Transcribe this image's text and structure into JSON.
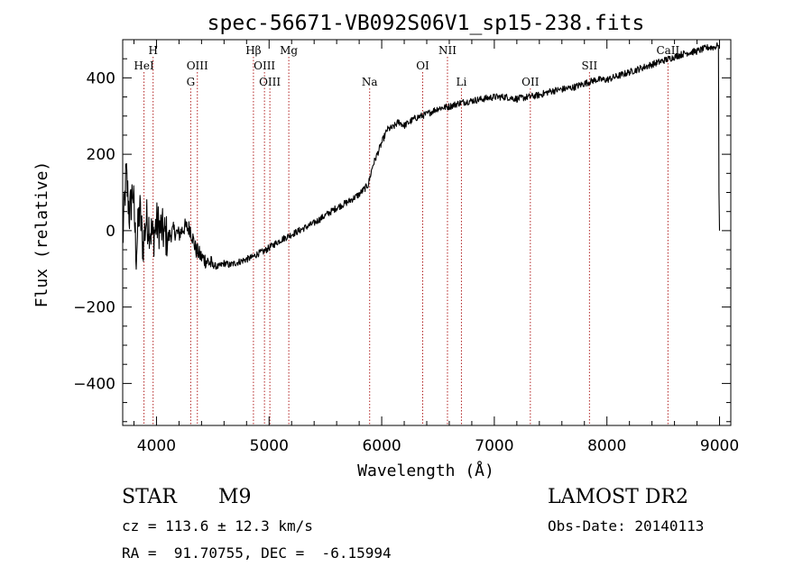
{
  "chart_data": {
    "type": "line",
    "title": "spec-56671-VB092S06V1_sp15-238.fits",
    "xlabel": "Wavelength (Å)",
    "ylabel": "Flux (relative)",
    "xlim": [
      3700,
      9100
    ],
    "ylim": [
      -510,
      500
    ],
    "x_ticks": [
      4000,
      5000,
      6000,
      7000,
      8000,
      9000
    ],
    "y_ticks": [
      -400,
      -200,
      0,
      200,
      400
    ],
    "x_tick_labels": [
      "4000",
      "5000",
      "6000",
      "7000",
      "8000",
      "9000"
    ],
    "y_tick_labels": [
      "−400",
      "−200",
      "0",
      "200",
      "400"
    ],
    "grid": false,
    "series": [
      {
        "color": "#000000",
        "points": [
          [
            3700,
            -30
          ],
          [
            3730,
            150
          ],
          [
            3760,
            40
          ],
          [
            3790,
            110
          ],
          [
            3820,
            -60
          ],
          [
            3850,
            60
          ],
          [
            3880,
            -40
          ],
          [
            3910,
            30
          ],
          [
            3940,
            10
          ],
          [
            3970,
            -20
          ],
          [
            4000,
            20
          ],
          [
            4050,
            0
          ],
          [
            4100,
            -20
          ],
          [
            4150,
            0
          ],
          [
            4200,
            -10
          ],
          [
            4250,
            10
          ],
          [
            4300,
            5
          ],
          [
            4350,
            -50
          ],
          [
            4400,
            -70
          ],
          [
            4450,
            -80
          ],
          [
            4500,
            -90
          ],
          [
            4550,
            -95
          ],
          [
            4600,
            -85
          ],
          [
            4650,
            -90
          ],
          [
            4700,
            -85
          ],
          [
            4750,
            -80
          ],
          [
            4800,
            -75
          ],
          [
            4850,
            -70
          ],
          [
            4900,
            -60
          ],
          [
            4950,
            -55
          ],
          [
            5000,
            -45
          ],
          [
            5100,
            -25
          ],
          [
            5200,
            -10
          ],
          [
            5300,
            5
          ],
          [
            5400,
            20
          ],
          [
            5500,
            40
          ],
          [
            5600,
            60
          ],
          [
            5700,
            75
          ],
          [
            5800,
            95
          ],
          [
            5880,
            120
          ],
          [
            5920,
            170
          ],
          [
            5960,
            200
          ],
          [
            6000,
            230
          ],
          [
            6050,
            265
          ],
          [
            6100,
            270
          ],
          [
            6150,
            285
          ],
          [
            6200,
            275
          ],
          [
            6300,
            295
          ],
          [
            6400,
            305
          ],
          [
            6500,
            320
          ],
          [
            6600,
            325
          ],
          [
            6700,
            335
          ],
          [
            6800,
            340
          ],
          [
            6900,
            345
          ],
          [
            7000,
            350
          ],
          [
            7100,
            350
          ],
          [
            7200,
            345
          ],
          [
            7300,
            350
          ],
          [
            7400,
            355
          ],
          [
            7500,
            365
          ],
          [
            7600,
            370
          ],
          [
            7700,
            375
          ],
          [
            7800,
            385
          ],
          [
            7900,
            395
          ],
          [
            8000,
            395
          ],
          [
            8100,
            405
          ],
          [
            8200,
            415
          ],
          [
            8300,
            425
          ],
          [
            8400,
            435
          ],
          [
            8500,
            445
          ],
          [
            8600,
            455
          ],
          [
            8700,
            465
          ],
          [
            8800,
            470
          ],
          [
            8900,
            480
          ],
          [
            8950,
            480
          ],
          [
            8990,
            485
          ],
          [
            8995,
            100
          ],
          [
            9000,
            0
          ]
        ]
      }
    ],
    "line_annotations": [
      {
        "label": "HeI",
        "x": 3889,
        "row": 3
      },
      {
        "label": "H",
        "x": 3970,
        "row": 1
      },
      {
        "label": "OIII",
        "x": 4363,
        "row": 3
      },
      {
        "label": "G",
        "x": 4304,
        "row": 4
      },
      {
        "label": "Hβ",
        "x": 4861,
        "row": 1
      },
      {
        "label": "OIII",
        "x": 4959,
        "row": 3
      },
      {
        "label": "OIII",
        "x": 5007,
        "row": 4
      },
      {
        "label": "Mg",
        "x": 5175,
        "row": 1
      },
      {
        "label": "Na",
        "x": 5893,
        "row": 4
      },
      {
        "label": "OI",
        "x": 6364,
        "row": 3
      },
      {
        "label": "NII",
        "x": 6584,
        "row": 1
      },
      {
        "label": "Li",
        "x": 6708,
        "row": 4
      },
      {
        "label": "OII",
        "x": 7320,
        "row": 4
      },
      {
        "label": "SII",
        "x": 7845,
        "row": 3
      },
      {
        "label": "CaII",
        "x": 8542,
        "row": 1
      }
    ]
  },
  "footer": {
    "object_type": "STAR",
    "subclass": "M9",
    "survey": "LAMOST DR2",
    "cz": "cz = 113.6 ± 12.3 km/s",
    "obs_date": "Obs-Date: 20140113",
    "coords": "RA =  91.70755, DEC =  -6.15994"
  }
}
